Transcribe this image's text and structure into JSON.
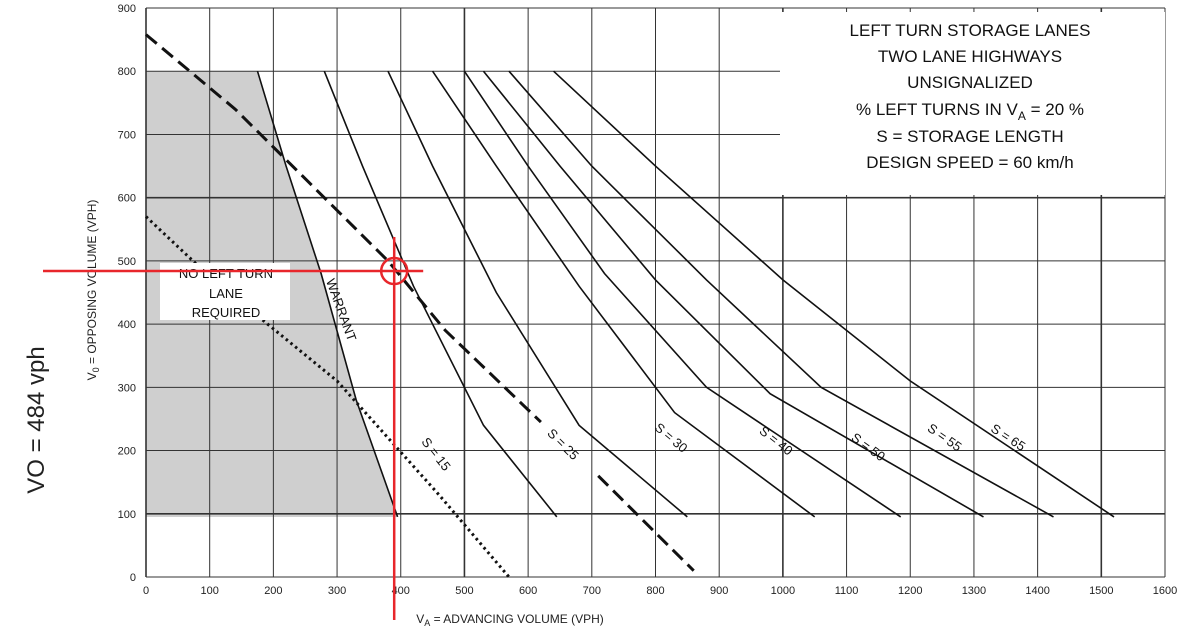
{
  "chart_data": {
    "type": "line",
    "title_lines": [
      "LEFT TURN STORAGE LANES",
      "TWO LANE HIGHWAYS",
      "UNSIGNALIZED",
      "% LEFT TURNS IN V",
      "S = STORAGE LENGTH",
      "DESIGN SPEED = 60 km/h"
    ],
    "title_sub": "A",
    "title_suffix": " = 20 %",
    "xlabel_main": "V",
    "xlabel_sub": "A",
    "xlabel_rest": " = ADVANCING VOLUME (VPH)",
    "ylabel_main": "V",
    "ylabel_sub": "0",
    "ylabel_rest": " = OPPOSING VOLUME (VPH)",
    "xlim": [
      0,
      1600
    ],
    "ylim": [
      0,
      900
    ],
    "x_ticks": [
      0,
      100,
      200,
      300,
      400,
      500,
      600,
      700,
      800,
      900,
      1000,
      1100,
      1200,
      1300,
      1400,
      1500,
      1600
    ],
    "y_ticks": [
      0,
      100,
      200,
      300,
      400,
      500,
      600,
      700,
      800,
      900
    ],
    "grid": true,
    "shaded_region": {
      "label_lines": [
        "NO LEFT TURN",
        "LANE",
        "REQUIRED"
      ],
      "points": [
        [
          0,
          800
        ],
        [
          175,
          800
        ],
        [
          220,
          650
        ],
        [
          275,
          480
        ],
        [
          330,
          280
        ],
        [
          395,
          95
        ],
        [
          0,
          95
        ]
      ]
    },
    "series": [
      {
        "name": "WARRANT",
        "style": "solid",
        "points": [
          [
            175,
            800
          ],
          [
            220,
            650
          ],
          [
            275,
            480
          ],
          [
            330,
            280
          ],
          [
            395,
            95
          ]
        ]
      },
      {
        "name": "S = 15",
        "style": "solid",
        "points": [
          [
            280,
            800
          ],
          [
            340,
            650
          ],
          [
            420,
            460
          ],
          [
            530,
            240
          ],
          [
            645,
            95
          ]
        ]
      },
      {
        "name": "S = 25",
        "style": "solid",
        "points": [
          [
            380,
            800
          ],
          [
            450,
            650
          ],
          [
            550,
            450
          ],
          [
            680,
            240
          ],
          [
            850,
            95
          ]
        ]
      },
      {
        "name": "S = 30",
        "style": "solid",
        "points": [
          [
            450,
            800
          ],
          [
            550,
            650
          ],
          [
            680,
            460
          ],
          [
            830,
            260
          ],
          [
            1050,
            95
          ]
        ]
      },
      {
        "name": "S = 40",
        "style": "solid",
        "points": [
          [
            500,
            800
          ],
          [
            600,
            650
          ],
          [
            720,
            480
          ],
          [
            880,
            300
          ],
          [
            1185,
            95
          ]
        ]
      },
      {
        "name": "S = 50",
        "style": "solid",
        "points": [
          [
            530,
            800
          ],
          [
            650,
            650
          ],
          [
            800,
            470
          ],
          [
            980,
            290
          ],
          [
            1315,
            95
          ]
        ]
      },
      {
        "name": "S = 55",
        "style": "solid",
        "points": [
          [
            570,
            800
          ],
          [
            700,
            650
          ],
          [
            880,
            470
          ],
          [
            1060,
            300
          ],
          [
            1425,
            95
          ]
        ]
      },
      {
        "name": "S = 65",
        "style": "solid",
        "points": [
          [
            640,
            800
          ],
          [
            800,
            650
          ],
          [
            1000,
            470
          ],
          [
            1200,
            310
          ],
          [
            1520,
            95
          ]
        ]
      },
      {
        "name": "",
        "style": "dashed",
        "points": [
          [
            0,
            858
          ],
          [
            140,
            740
          ],
          [
            380,
            500
          ],
          [
            470,
            390
          ],
          [
            620,
            245
          ]
        ]
      },
      {
        "name": "",
        "style": "dashed",
        "points": [
          [
            710,
            160
          ],
          [
            860,
            10
          ]
        ]
      },
      {
        "name": "",
        "style": "dotted",
        "points": [
          [
            0,
            570
          ],
          [
            100,
            475
          ],
          [
            300,
            310
          ],
          [
            460,
            130
          ],
          [
            570,
            0
          ]
        ]
      }
    ],
    "curve_labels": [
      {
        "text": "WARRANT",
        "x": 300,
        "y": 420,
        "angle": 70
      },
      {
        "text": "S = 15",
        "x": 450,
        "y": 190,
        "angle": 52
      },
      {
        "text": "S = 25",
        "x": 650,
        "y": 205,
        "angle": 45
      },
      {
        "text": "S = 30",
        "x": 820,
        "y": 215,
        "angle": 40
      },
      {
        "text": "S = 40",
        "x": 985,
        "y": 210,
        "angle": 38
      },
      {
        "text": "S = 50",
        "x": 1130,
        "y": 200,
        "angle": 36
      },
      {
        "text": "S = 55",
        "x": 1250,
        "y": 215,
        "angle": 35
      },
      {
        "text": "S = 65",
        "x": 1350,
        "y": 215,
        "angle": 33
      }
    ],
    "annotation": {
      "marker_x": 385,
      "marker_y": 484,
      "text": "VO = 484 vph",
      "color": "#e8262b"
    }
  }
}
